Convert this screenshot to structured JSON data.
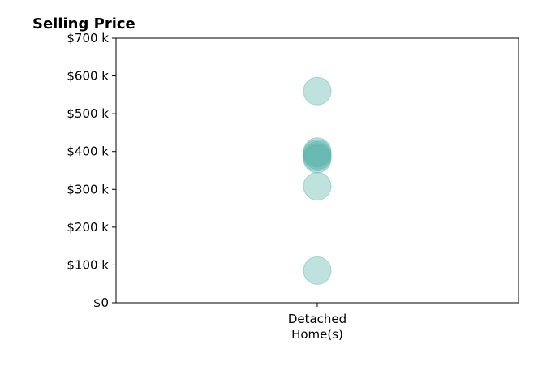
{
  "chart_data": {
    "type": "scatter",
    "title": "Selling Price",
    "xlabel": "",
    "ylabel": "",
    "categories": [
      "Detached\nHome(s)"
    ],
    "ylim": [
      0,
      700000
    ],
    "yticks": [
      0,
      100000,
      200000,
      300000,
      400000,
      500000,
      600000,
      700000
    ],
    "ytick_labels": [
      "$0",
      "$100 k",
      "$200 k",
      "$300 k",
      "$400 k",
      "$500 k",
      "$600 k",
      "$700 k"
    ],
    "grid": false,
    "legend": "none",
    "point_color": "#5ab4ac",
    "series": [
      {
        "values": [
          560000,
          400000,
          395000,
          390000,
          385000,
          380000,
          308000,
          85000
        ]
      }
    ]
  }
}
